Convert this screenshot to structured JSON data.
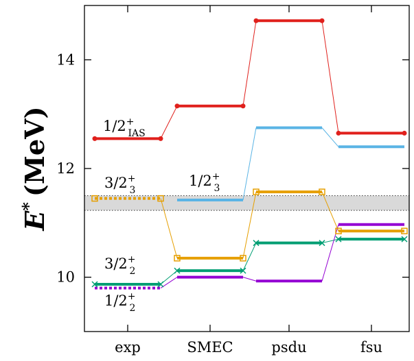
{
  "chart_data": {
    "type": "level-scheme",
    "categories": [
      "exp",
      "SMEC",
      "psdu",
      "fsu"
    ],
    "ylabel": {
      "main": "E",
      "sup": "*",
      "rest": "(MeV)"
    },
    "ylim": [
      9.0,
      15.0
    ],
    "yticks": [
      10,
      12,
      14
    ],
    "grid": false,
    "band": {
      "range": [
        11.23,
        11.5
      ],
      "color": "#d9d9d9"
    },
    "series": [
      {
        "key": "half-ias",
        "color": "#e0201c",
        "marker": "dot",
        "values": [
          12.55,
          13.15,
          14.72,
          12.65
        ],
        "label": {
          "base": "1/2",
          "sup": "+",
          "sub": "IAS",
          "category": "exp"
        }
      },
      {
        "key": "half-3",
        "color": "#5ab4e5",
        "marker": "none",
        "values": [
          null,
          11.42,
          12.75,
          12.4
        ],
        "label": {
          "base": "1/2",
          "sup": "+",
          "sub": "3",
          "category": "SMEC"
        }
      },
      {
        "key": "threehalf-3",
        "color": "#e69f00",
        "marker": "square",
        "values": [
          11.45,
          10.35,
          11.57,
          10.85
        ],
        "dashed_categories": [
          "exp"
        ],
        "label": {
          "base": "3/2",
          "sup": "+",
          "sub": "3",
          "category": "exp"
        }
      },
      {
        "key": "threehalf-2",
        "color": "#009e73",
        "marker": "cross",
        "values": [
          9.87,
          10.12,
          10.63,
          10.7
        ],
        "label": {
          "base": "3/2",
          "sup": "+",
          "sub": "2",
          "category": "exp"
        }
      },
      {
        "key": "half-2",
        "color": "#9400d3",
        "marker": "none",
        "values": [
          9.8,
          10.0,
          9.93,
          10.97
        ],
        "dashed_categories": [
          "exp"
        ],
        "label": {
          "base": "1/2",
          "sup": "+",
          "sub": "2",
          "category": "exp"
        }
      }
    ]
  }
}
